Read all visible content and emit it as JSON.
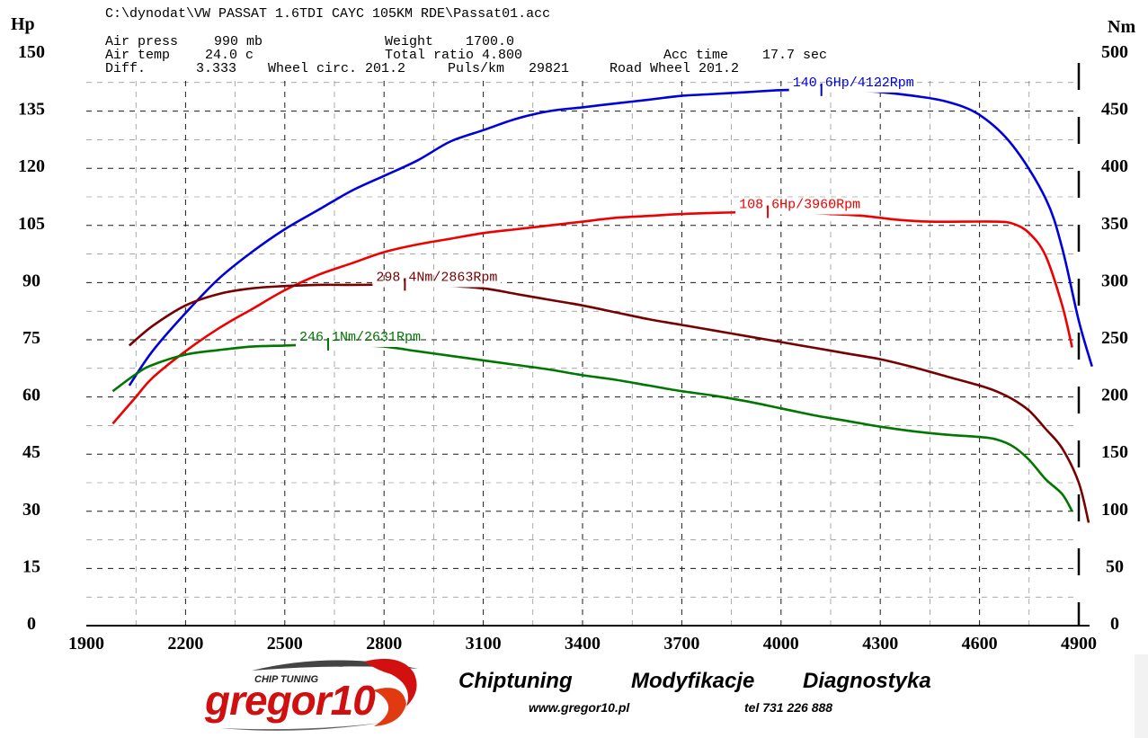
{
  "header": {
    "file_path": "C:\\dynodat\\VW PASSAT 1.6TDI CAYC 105KM RDE\\Passat01.acc",
    "air_press_label": "Air press",
    "air_press_value": "990 mb",
    "air_temp_label": "Air temp",
    "air_temp_value": "24.0 c",
    "diff_label": "Diff.",
    "diff_value": "3.333",
    "wheel_circ": "Wheel circ. 201.2",
    "weight_label": "Weight",
    "weight_value": "1700.0",
    "total_ratio": "Total ratio 4.800",
    "puls_km": "Puls/km   29821",
    "road_wheel": "Road Wheel 201.2",
    "acc_time_label": "Acc time",
    "acc_time_value": "17.7 sec"
  },
  "footer": {
    "slogan_chiptuning": "Chiptuning",
    "slogan_modyfikacje": "Modyfikacje",
    "slogan_diagnostyka": "Diagnostyka",
    "website": "www.gregor10.pl",
    "phone": "tel 731 226 888",
    "logo_text": "gregor10",
    "logo_tagline": "CHIP TUNING"
  },
  "colors": {
    "blue": "#0000dd",
    "red": "#ee0000",
    "maroon": "#770000",
    "green": "#007700",
    "grid": "#000000"
  },
  "chart_data": {
    "type": "line",
    "xlabel": "",
    "ylabel_left": "Hp",
    "ylabel_right": "Nm",
    "xlim": [
      1900,
      4900
    ],
    "ylim_left": [
      0,
      150
    ],
    "ylim_right": [
      0,
      500
    ],
    "x_ticks": [
      "1900",
      "2200",
      "2500",
      "2800",
      "3100",
      "3400",
      "3700",
      "4000",
      "4300",
      "4600",
      "4900"
    ],
    "y_ticks_left": [
      "0",
      "15",
      "30",
      "45",
      "60",
      "75",
      "90",
      "105",
      "120",
      "135",
      "150"
    ],
    "y_ticks_right": [
      "0",
      "50",
      "100",
      "150",
      "200",
      "250",
      "300",
      "350",
      "400",
      "450",
      "500"
    ],
    "grid": true,
    "series": [
      {
        "name": "140.6Hp/4122Rpm",
        "axis": "left",
        "color": "#0000dd",
        "peak_x": 4122,
        "peak_y": 140.6,
        "x": [
          2030,
          2100,
          2200,
          2300,
          2400,
          2500,
          2600,
          2700,
          2800,
          2900,
          3000,
          3100,
          3200,
          3300,
          3400,
          3500,
          3600,
          3700,
          3800,
          3900,
          4000,
          4122,
          4200,
          4300,
          4400,
          4500,
          4600,
          4700,
          4800,
          4850,
          4900,
          4940
        ],
        "y": [
          63,
          72,
          82,
          91,
          98,
          104,
          109,
          114,
          118,
          122,
          127,
          130,
          133,
          135,
          136,
          137,
          138,
          139,
          139.5,
          140,
          140.5,
          140.6,
          140.5,
          140,
          139,
          137.5,
          134,
          126,
          112,
          99,
          80,
          68
        ]
      },
      {
        "name": "108.6Hp/3960Rpm",
        "axis": "left",
        "color": "#ee0000",
        "peak_x": 3960,
        "peak_y": 108.6,
        "x": [
          1980,
          2050,
          2100,
          2200,
          2300,
          2400,
          2500,
          2600,
          2700,
          2800,
          2900,
          3000,
          3100,
          3200,
          3300,
          3400,
          3500,
          3600,
          3700,
          3800,
          3900,
          3960,
          4050,
          4150,
          4250,
          4350,
          4450,
          4550,
          4650,
          4700,
          4750,
          4800,
          4850,
          4880
        ],
        "y": [
          53,
          60,
          65,
          72,
          78,
          83,
          88,
          92,
          95,
          98,
          100,
          101.5,
          103,
          104,
          105,
          106,
          107,
          107.5,
          108,
          108.3,
          108.5,
          108.6,
          108.4,
          108,
          107.5,
          106.5,
          106,
          106,
          106,
          105.5,
          103,
          97,
          84,
          73
        ]
      },
      {
        "name": "298.4Nm/2863Rpm",
        "axis": "right",
        "color": "#770000",
        "peak_x": 2863,
        "peak_y": 298.4,
        "x": [
          2030,
          2100,
          2200,
          2300,
          2400,
          2500,
          2600,
          2700,
          2800,
          2863,
          2950,
          3100,
          3200,
          3300,
          3400,
          3500,
          3600,
          3700,
          3800,
          3900,
          4000,
          4100,
          4200,
          4300,
          4400,
          4500,
          4600,
          4650,
          4700,
          4750,
          4800,
          4850,
          4900,
          4930
        ],
        "y": [
          245,
          262,
          280,
          290,
          295,
          297,
          298,
          298,
          298.2,
          298.4,
          298,
          295,
          290,
          285,
          280,
          274,
          268,
          263,
          258,
          253,
          248,
          243,
          238,
          233,
          226,
          218,
          210,
          205,
          198,
          188,
          172,
          155,
          125,
          90
        ]
      },
      {
        "name": "246.1Nm/2631Rpm",
        "axis": "right",
        "color": "#007700",
        "peak_x": 2631,
        "peak_y": 246.1,
        "x": [
          1980,
          2050,
          2100,
          2200,
          2300,
          2400,
          2500,
          2600,
          2631,
          2700,
          2800,
          2900,
          3000,
          3100,
          3200,
          3300,
          3400,
          3500,
          3600,
          3700,
          3800,
          3900,
          4000,
          4100,
          4200,
          4300,
          4400,
          4500,
          4600,
          4650,
          4700,
          4750,
          4800,
          4850,
          4880
        ],
        "y": [
          205,
          220,
          228,
          237,
          241,
          244,
          245,
          246,
          246.1,
          245.5,
          244,
          240,
          236,
          232,
          228,
          224,
          219,
          215,
          210,
          205,
          201,
          196,
          190,
          184,
          179,
          174,
          170,
          167,
          165,
          163,
          157,
          145,
          128,
          115,
          100
        ]
      }
    ]
  }
}
